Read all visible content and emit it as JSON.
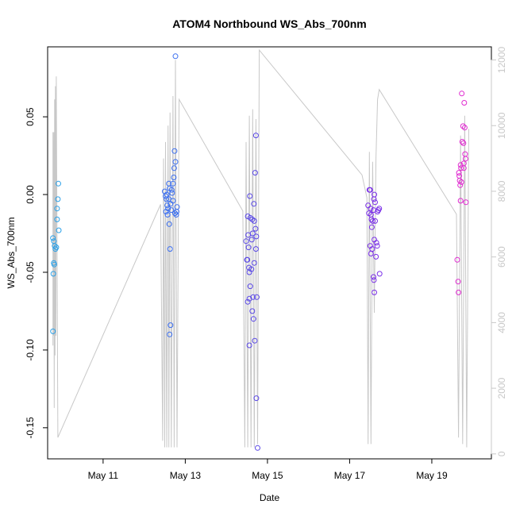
{
  "chart_data": {
    "type": "scatter",
    "title": "ATOM4 Northbound WS_Abs_700nm",
    "xlabel": "Date",
    "ylabel": "WS_Abs_700nm",
    "xlim": [
      9.65,
      20.45
    ],
    "ylim": [
      -0.17,
      0.095
    ],
    "x_ticks": [
      {
        "value": 11,
        "label": "May 11"
      },
      {
        "value": 13,
        "label": "May 13"
      },
      {
        "value": 15,
        "label": "May 15"
      },
      {
        "value": 17,
        "label": "May 17"
      },
      {
        "value": 19,
        "label": "May 19"
      }
    ],
    "y_ticks": [
      {
        "value": -0.15,
        "label": "-0.15"
      },
      {
        "value": -0.1,
        "label": "-0.10"
      },
      {
        "value": -0.05,
        "label": "-0.05"
      },
      {
        "value": 0.0,
        "label": "0.00"
      },
      {
        "value": 0.05,
        "label": "0.05"
      }
    ],
    "secondary_axis": {
      "label": "",
      "ylim": [
        -150,
        12400
      ],
      "ticks": [
        {
          "value": 0,
          "label": "0"
        },
        {
          "value": 2000,
          "label": "2000"
        },
        {
          "value": 4000,
          "label": "4000"
        },
        {
          "value": 6000,
          "label": "6000"
        },
        {
          "value": 8000,
          "label": "8000"
        },
        {
          "value": 10000,
          "label": "10000"
        },
        {
          "value": 12000,
          "label": "12000"
        }
      ]
    },
    "colors": {
      "series_line": "#c8c8c8",
      "axis": "#000000",
      "box": "#000000",
      "right_axis": "#c8c8c8"
    },
    "points": [
      {
        "x": 9.78,
        "y": -0.028,
        "color": "#2aa0e8"
      },
      {
        "x": 9.8,
        "y": -0.03,
        "color": "#2aa0e8"
      },
      {
        "x": 9.82,
        "y": -0.033,
        "color": "#2aa0e8"
      },
      {
        "x": 9.8,
        "y": -0.044,
        "color": "#2aa0e8"
      },
      {
        "x": 9.81,
        "y": -0.045,
        "color": "#2aa0e8"
      },
      {
        "x": 9.79,
        "y": -0.051,
        "color": "#2aa0e8"
      },
      {
        "x": 9.78,
        "y": -0.088,
        "color": "#2aa0e8"
      },
      {
        "x": 9.84,
        "y": -0.035,
        "color": "#2aa0e8"
      },
      {
        "x": 9.86,
        "y": -0.034,
        "color": "#2aa0e8"
      },
      {
        "x": 9.88,
        "y": -0.016,
        "color": "#2aa0e8"
      },
      {
        "x": 9.88,
        "y": -0.009,
        "color": "#2aa0e8"
      },
      {
        "x": 9.9,
        "y": -0.003,
        "color": "#2aa0e8"
      },
      {
        "x": 9.92,
        "y": -0.023,
        "color": "#2aa0e8"
      },
      {
        "x": 9.91,
        "y": 0.007,
        "color": "#2aa0e8"
      },
      {
        "x": 12.5,
        "y": 0.002,
        "color": "#3a6ef0"
      },
      {
        "x": 12.52,
        "y": -0.001,
        "color": "#3a6ef0"
      },
      {
        "x": 12.55,
        "y": 0.0,
        "color": "#3a6ef0"
      },
      {
        "x": 12.54,
        "y": -0.003,
        "color": "#3a6ef0"
      },
      {
        "x": 12.56,
        "y": -0.007,
        "color": "#3a6ef0"
      },
      {
        "x": 12.58,
        "y": -0.009,
        "color": "#3a6ef0"
      },
      {
        "x": 12.53,
        "y": -0.011,
        "color": "#3a6ef0"
      },
      {
        "x": 12.57,
        "y": -0.013,
        "color": "#3a6ef0"
      },
      {
        "x": 12.6,
        "y": -0.003,
        "color": "#3a6ef0"
      },
      {
        "x": 12.62,
        "y": 0.004,
        "color": "#3a6ef0"
      },
      {
        "x": 12.6,
        "y": 0.007,
        "color": "#3a6ef0"
      },
      {
        "x": 12.64,
        "y": -0.006,
        "color": "#3a6ef0"
      },
      {
        "x": 12.66,
        "y": -0.01,
        "color": "#3a6ef0"
      },
      {
        "x": 12.61,
        "y": -0.019,
        "color": "#3a6ef0"
      },
      {
        "x": 12.63,
        "y": -0.035,
        "color": "#3a6ef0"
      },
      {
        "x": 12.64,
        "y": -0.084,
        "color": "#3a6ef0"
      },
      {
        "x": 12.62,
        "y": -0.09,
        "color": "#3a6ef0"
      },
      {
        "x": 12.67,
        "y": 0.003,
        "color": "#3a6ef0"
      },
      {
        "x": 12.68,
        "y": 0.001,
        "color": "#3a6ef0"
      },
      {
        "x": 12.7,
        "y": -0.004,
        "color": "#3a6ef0"
      },
      {
        "x": 12.7,
        "y": 0.007,
        "color": "#3a6ef0"
      },
      {
        "x": 12.72,
        "y": 0.011,
        "color": "#3a6ef0"
      },
      {
        "x": 12.73,
        "y": 0.017,
        "color": "#3a6ef0"
      },
      {
        "x": 12.74,
        "y": 0.028,
        "color": "#3a6ef0"
      },
      {
        "x": 12.76,
        "y": 0.021,
        "color": "#3a6ef0"
      },
      {
        "x": 12.75,
        "y": -0.012,
        "color": "#3a6ef0"
      },
      {
        "x": 12.78,
        "y": -0.013,
        "color": "#3a6ef0"
      },
      {
        "x": 12.79,
        "y": -0.011,
        "color": "#3a6ef0"
      },
      {
        "x": 12.8,
        "y": -0.008,
        "color": "#3a6ef0"
      },
      {
        "x": 12.76,
        "y": 0.089,
        "color": "#3a6ef0"
      },
      {
        "x": 14.48,
        "y": -0.03,
        "color": "#5a48e6"
      },
      {
        "x": 14.5,
        "y": -0.042,
        "color": "#5a48e6"
      },
      {
        "x": 14.51,
        "y": -0.042,
        "color": "#5a48e6"
      },
      {
        "x": 14.52,
        "y": -0.014,
        "color": "#5a48e6"
      },
      {
        "x": 14.53,
        "y": -0.026,
        "color": "#5a48e6"
      },
      {
        "x": 14.54,
        "y": -0.034,
        "color": "#5a48e6"
      },
      {
        "x": 14.55,
        "y": -0.047,
        "color": "#5a48e6"
      },
      {
        "x": 14.56,
        "y": -0.05,
        "color": "#5a48e6"
      },
      {
        "x": 14.52,
        "y": -0.069,
        "color": "#5a48e6"
      },
      {
        "x": 14.57,
        "y": -0.001,
        "color": "#5a48e6"
      },
      {
        "x": 14.58,
        "y": -0.015,
        "color": "#5a48e6"
      },
      {
        "x": 14.58,
        "y": -0.059,
        "color": "#5a48e6"
      },
      {
        "x": 14.56,
        "y": -0.067,
        "color": "#5a48e6"
      },
      {
        "x": 14.56,
        "y": -0.097,
        "color": "#5a48e6"
      },
      {
        "x": 14.61,
        "y": -0.048,
        "color": "#5a48e6"
      },
      {
        "x": 14.62,
        "y": -0.029,
        "color": "#5a48e6"
      },
      {
        "x": 14.63,
        "y": -0.016,
        "color": "#5a48e6"
      },
      {
        "x": 14.64,
        "y": -0.025,
        "color": "#5a48e6"
      },
      {
        "x": 14.63,
        "y": -0.075,
        "color": "#5a48e6"
      },
      {
        "x": 14.65,
        "y": -0.066,
        "color": "#5a48e6"
      },
      {
        "x": 14.66,
        "y": -0.08,
        "color": "#5a48e6"
      },
      {
        "x": 14.67,
        "y": -0.006,
        "color": "#5a48e6"
      },
      {
        "x": 14.68,
        "y": -0.017,
        "color": "#5a48e6"
      },
      {
        "x": 14.68,
        "y": -0.044,
        "color": "#5a48e6"
      },
      {
        "x": 14.69,
        "y": -0.094,
        "color": "#5a48e6"
      },
      {
        "x": 14.7,
        "y": 0.014,
        "color": "#5a48e6"
      },
      {
        "x": 14.71,
        "y": -0.022,
        "color": "#5a48e6"
      },
      {
        "x": 14.72,
        "y": -0.035,
        "color": "#5a48e6"
      },
      {
        "x": 14.73,
        "y": -0.027,
        "color": "#5a48e6"
      },
      {
        "x": 14.72,
        "y": 0.038,
        "color": "#5a48e6"
      },
      {
        "x": 14.74,
        "y": -0.066,
        "color": "#5a48e6"
      },
      {
        "x": 14.73,
        "y": -0.131,
        "color": "#5a48e6"
      },
      {
        "x": 14.76,
        "y": -0.163,
        "color": "#5a48e6"
      },
      {
        "x": 17.45,
        "y": -0.007,
        "color": "#7a2ee8"
      },
      {
        "x": 17.47,
        "y": -0.012,
        "color": "#7a2ee8"
      },
      {
        "x": 17.48,
        "y": 0.003,
        "color": "#7a2ee8"
      },
      {
        "x": 17.5,
        "y": 0.003,
        "color": "#7a2ee8"
      },
      {
        "x": 17.51,
        "y": -0.009,
        "color": "#7a2ee8"
      },
      {
        "x": 17.52,
        "y": -0.013,
        "color": "#7a2ee8"
      },
      {
        "x": 17.53,
        "y": -0.016,
        "color": "#7a2ee8"
      },
      {
        "x": 17.54,
        "y": -0.021,
        "color": "#7a2ee8"
      },
      {
        "x": 17.5,
        "y": -0.033,
        "color": "#7a2ee8"
      },
      {
        "x": 17.52,
        "y": -0.038,
        "color": "#7a2ee8"
      },
      {
        "x": 17.55,
        "y": -0.035,
        "color": "#7a2ee8"
      },
      {
        "x": 17.56,
        "y": -0.017,
        "color": "#7a2ee8"
      },
      {
        "x": 17.58,
        "y": -0.01,
        "color": "#7a2ee8"
      },
      {
        "x": 17.59,
        "y": -0.003,
        "color": "#7a2ee8"
      },
      {
        "x": 17.6,
        "y": 0.0,
        "color": "#7a2ee8"
      },
      {
        "x": 17.62,
        "y": -0.005,
        "color": "#7a2ee8"
      },
      {
        "x": 17.6,
        "y": -0.029,
        "color": "#7a2ee8"
      },
      {
        "x": 17.64,
        "y": -0.04,
        "color": "#7a2ee8"
      },
      {
        "x": 17.58,
        "y": -0.053,
        "color": "#7a2ee8"
      },
      {
        "x": 17.59,
        "y": -0.055,
        "color": "#7a2ee8"
      },
      {
        "x": 17.6,
        "y": -0.063,
        "color": "#7a2ee8"
      },
      {
        "x": 17.65,
        "y": -0.031,
        "color": "#7a2ee8"
      },
      {
        "x": 17.67,
        "y": -0.033,
        "color": "#7a2ee8"
      },
      {
        "x": 17.68,
        "y": -0.011,
        "color": "#7a2ee8"
      },
      {
        "x": 17.7,
        "y": -0.01,
        "color": "#7a2ee8"
      },
      {
        "x": 17.72,
        "y": -0.009,
        "color": "#7a2ee8"
      },
      {
        "x": 17.73,
        "y": -0.051,
        "color": "#7a2ee8"
      },
      {
        "x": 17.62,
        "y": -0.017,
        "color": "#7a2ee8"
      },
      {
        "x": 19.62,
        "y": -0.042,
        "color": "#e02ad0"
      },
      {
        "x": 19.64,
        "y": -0.056,
        "color": "#e02ad0"
      },
      {
        "x": 19.65,
        "y": -0.063,
        "color": "#e02ad0"
      },
      {
        "x": 19.66,
        "y": 0.014,
        "color": "#e02ad0"
      },
      {
        "x": 19.67,
        "y": 0.012,
        "color": "#e02ad0"
      },
      {
        "x": 19.68,
        "y": 0.009,
        "color": "#e02ad0"
      },
      {
        "x": 19.69,
        "y": 0.006,
        "color": "#e02ad0"
      },
      {
        "x": 19.7,
        "y": 0.019,
        "color": "#e02ad0"
      },
      {
        "x": 19.71,
        "y": 0.017,
        "color": "#e02ad0"
      },
      {
        "x": 19.72,
        "y": 0.008,
        "color": "#e02ad0"
      },
      {
        "x": 19.7,
        "y": -0.004,
        "color": "#e02ad0"
      },
      {
        "x": 19.73,
        "y": 0.065,
        "color": "#e02ad0"
      },
      {
        "x": 19.74,
        "y": 0.034,
        "color": "#e02ad0"
      },
      {
        "x": 19.76,
        "y": 0.044,
        "color": "#e02ad0"
      },
      {
        "x": 19.77,
        "y": 0.033,
        "color": "#e02ad0"
      },
      {
        "x": 19.78,
        "y": 0.02,
        "color": "#e02ad0"
      },
      {
        "x": 19.79,
        "y": 0.059,
        "color": "#e02ad0"
      },
      {
        "x": 19.8,
        "y": 0.043,
        "color": "#e02ad0"
      },
      {
        "x": 19.81,
        "y": 0.026,
        "color": "#e02ad0"
      },
      {
        "x": 19.82,
        "y": 0.023,
        "color": "#e02ad0"
      },
      {
        "x": 19.83,
        "y": -0.005,
        "color": "#e02ad0"
      },
      {
        "x": 19.78,
        "y": 0.017,
        "color": "#e02ad0"
      }
    ],
    "secondary_series": [
      {
        "x": 9.78,
        "y": 3300
      },
      {
        "x": 9.78,
        "y": 9800
      },
      {
        "x": 9.79,
        "y": 3600
      },
      {
        "x": 9.8,
        "y": 9800
      },
      {
        "x": 9.81,
        "y": 1400
      },
      {
        "x": 9.82,
        "y": 10800
      },
      {
        "x": 9.83,
        "y": 3000
      },
      {
        "x": 9.84,
        "y": 11200
      },
      {
        "x": 9.85,
        "y": 3600
      },
      {
        "x": 9.86,
        "y": 11500
      },
      {
        "x": 9.9,
        "y": 500
      },
      {
        "x": 12.4,
        "y": 7600
      },
      {
        "x": 12.45,
        "y": 400
      },
      {
        "x": 12.47,
        "y": 9000
      },
      {
        "x": 12.5,
        "y": 200
      },
      {
        "x": 12.52,
        "y": 9500
      },
      {
        "x": 12.55,
        "y": 200
      },
      {
        "x": 12.58,
        "y": 10000
      },
      {
        "x": 12.6,
        "y": 200
      },
      {
        "x": 12.63,
        "y": 10400
      },
      {
        "x": 12.66,
        "y": 200
      },
      {
        "x": 12.7,
        "y": 10900
      },
      {
        "x": 12.73,
        "y": 200
      },
      {
        "x": 12.76,
        "y": 12000
      },
      {
        "x": 12.8,
        "y": 200
      },
      {
        "x": 12.85,
        "y": 10800
      },
      {
        "x": 14.4,
        "y": 7400
      },
      {
        "x": 14.45,
        "y": 200
      },
      {
        "x": 14.48,
        "y": 9500
      },
      {
        "x": 14.52,
        "y": 200
      },
      {
        "x": 14.56,
        "y": 10300
      },
      {
        "x": 14.6,
        "y": 200
      },
      {
        "x": 14.64,
        "y": 10500
      },
      {
        "x": 14.68,
        "y": 200
      },
      {
        "x": 14.72,
        "y": 10200
      },
      {
        "x": 14.76,
        "y": 300
      },
      {
        "x": 14.8,
        "y": 12300
      },
      {
        "x": 17.3,
        "y": 8500
      },
      {
        "x": 17.42,
        "y": 7800
      },
      {
        "x": 17.45,
        "y": 300
      },
      {
        "x": 17.48,
        "y": 9200
      },
      {
        "x": 17.52,
        "y": 300
      },
      {
        "x": 17.56,
        "y": 8900
      },
      {
        "x": 17.6,
        "y": 4300
      },
      {
        "x": 17.64,
        "y": 9000
      },
      {
        "x": 17.68,
        "y": 10800
      },
      {
        "x": 17.72,
        "y": 11100
      },
      {
        "x": 19.6,
        "y": 7300
      },
      {
        "x": 19.65,
        "y": 500
      },
      {
        "x": 19.7,
        "y": 9700
      },
      {
        "x": 19.75,
        "y": 300
      },
      {
        "x": 19.8,
        "y": 10300
      },
      {
        "x": 19.85,
        "y": 200
      },
      {
        "x": 19.9,
        "y": 9900
      }
    ]
  }
}
